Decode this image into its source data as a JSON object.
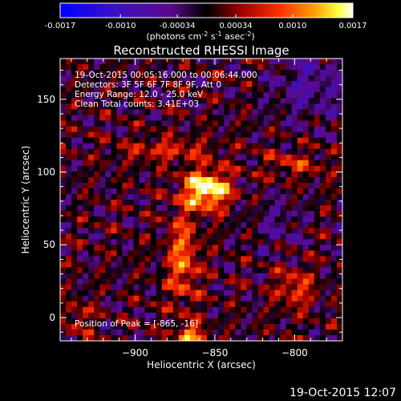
{
  "chart_data": {
    "type": "heatmap",
    "title": "Reconstructed RHESSI Image",
    "xlabel": "Heliocentric X (arcsec)",
    "ylabel": "Heliocentric Y (arcsec)",
    "xlim": [
      -947,
      -770
    ],
    "ylim": [
      -16,
      178
    ],
    "x_ticks": [
      -900,
      -850,
      -800
    ],
    "y_ticks": [
      0,
      50,
      100,
      150
    ],
    "colorbar": {
      "ticks": [
        "-0.0017",
        "-0.0010",
        "-0.00034",
        "0.00034",
        "0.0010",
        "0.0017"
      ],
      "tick_values": [
        -0.0017,
        -0.001,
        -0.00034,
        0.00034,
        0.001,
        0.0017
      ],
      "range": [
        -0.0017,
        0.0017
      ],
      "units_prefix": "(photons cm",
      "units_sup1": "-2",
      "units_mid": " s",
      "units_sup2": "-1",
      "units_mid2": " asec",
      "units_sup3": "-2",
      "units_suffix": ")"
    },
    "annotations": [
      "19-Oct-2015 00:05:16.000 to 00:06:44.000",
      "Detectors: 3F 5F 6F 7F 8F 9F, Att 0",
      "Energy Range: 12.0 - 25.0 keV",
      "Clean    Total counts: 3.41E+03"
    ],
    "peak_label": "Position of Peak = [-865, -16]",
    "peak": [
      -865,
      -16
    ],
    "grid": false,
    "legend": "colorbar top"
  },
  "footer": {
    "timestamp": "19-Oct-2015 12:07"
  },
  "colors": {
    "background": "#000000",
    "text": "#ffffff"
  }
}
